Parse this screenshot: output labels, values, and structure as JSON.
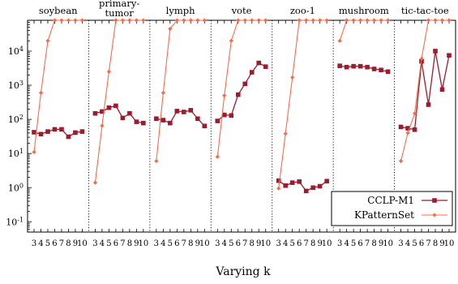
{
  "chart_data": {
    "type": "line",
    "xlabel": "Varying k",
    "ylabel": "",
    "yscale": "log",
    "ylim": [
      0.05,
      80000
    ],
    "y_ticks": [
      {
        "value": 0.1,
        "base": "10",
        "exp": "-1"
      },
      {
        "value": 1,
        "base": "10",
        "exp": "0"
      },
      {
        "value": 10,
        "base": "10",
        "exp": "1"
      },
      {
        "value": 100,
        "base": "10",
        "exp": "2"
      },
      {
        "value": 1000,
        "base": "10",
        "exp": "3"
      },
      {
        "value": 10000,
        "base": "10",
        "exp": "4"
      }
    ],
    "legend_position": "bottom-right",
    "colors": {
      "CCLP-M1": "#9b1c2e",
      "KPatternSet": "#f26d4f"
    },
    "series_names": [
      "CCLP-M1",
      "KPatternSet"
    ],
    "panels": [
      {
        "title": [
          "soybean"
        ],
        "x": [
          3,
          4,
          5,
          6,
          7,
          8,
          9,
          10
        ],
        "x_tick_labels": [
          "3",
          "4",
          "5",
          "6",
          "7",
          "8",
          "9",
          "10"
        ],
        "series": [
          {
            "name": "CCLP-M1",
            "values": [
              42,
              37,
              44,
              51,
              51,
              31,
              41,
              44
            ]
          },
          {
            "name": "KPatternSet",
            "values": [
              11,
              600,
              20000,
              80000,
              80000,
              80000,
              80000,
              80000
            ]
          }
        ]
      },
      {
        "title": [
          "primary-",
          "tumor"
        ],
        "x": [
          3,
          4,
          5,
          6,
          7,
          8,
          9,
          10
        ],
        "x_tick_labels": [
          "3",
          "4",
          "5",
          "6",
          "7",
          "8",
          "9",
          "10"
        ],
        "series": [
          {
            "name": "CCLP-M1",
            "values": [
              150,
              170,
              220,
              250,
              110,
              150,
              85,
              78
            ]
          },
          {
            "name": "KPatternSet",
            "values": [
              1.4,
              65,
              2500,
              80000,
              80000,
              80000,
              80000,
              80000
            ]
          }
        ]
      },
      {
        "title": [
          "lymph"
        ],
        "x": [
          3,
          4,
          5,
          6,
          7,
          8,
          9,
          10
        ],
        "x_tick_labels": [
          "3",
          "4",
          "5",
          "6",
          "7",
          "8",
          "9",
          "10"
        ],
        "series": [
          {
            "name": "CCLP-M1",
            "values": [
              105,
              95,
              78,
              175,
              165,
              185,
              105,
              64
            ]
          },
          {
            "name": "KPatternSet",
            "values": [
              6,
              600,
              45000,
              80000,
              80000,
              80000,
              80000,
              80000
            ]
          }
        ]
      },
      {
        "title": [
          "vote"
        ],
        "x": [
          3,
          4,
          5,
          6,
          7,
          8,
          9,
          10
        ],
        "x_tick_labels": [
          "3",
          "4",
          "5",
          "6",
          "7",
          "8",
          "9",
          "10"
        ],
        "series": [
          {
            "name": "CCLP-M1",
            "values": [
              90,
              135,
              130,
              530,
              1100,
              2400,
              4500,
              3500
            ]
          },
          {
            "name": "KPatternSet",
            "values": [
              8,
              500,
              20000,
              80000,
              80000,
              80000,
              80000,
              80000
            ]
          }
        ]
      },
      {
        "title": [
          "zoo-1"
        ],
        "x": [
          3,
          4,
          5,
          6,
          7,
          8,
          9,
          10
        ],
        "x_tick_labels": [
          "3",
          "4",
          "5",
          "6",
          "7",
          "8",
          "9",
          "10"
        ],
        "series": [
          {
            "name": "CCLP-M1",
            "values": [
              1.6,
              1.15,
              1.4,
              1.5,
              0.8,
              1.0,
              1.1,
              1.55
            ]
          },
          {
            "name": "KPatternSet",
            "values": [
              0.95,
              38,
              1700,
              80000,
              80000,
              80000,
              80000,
              80000
            ]
          }
        ]
      },
      {
        "title": [
          "mushroom"
        ],
        "x": [
          3,
          4,
          5,
          6,
          7,
          8,
          9,
          10
        ],
        "x_tick_labels": [
          "3",
          "4",
          "5",
          "6",
          "7",
          "8",
          "9",
          "10"
        ],
        "series": [
          {
            "name": "CCLP-M1",
            "values": [
              3700,
              3400,
              3600,
              3600,
              3400,
              3000,
              2800,
              2500
            ]
          },
          {
            "name": "KPatternSet",
            "values": [
              20000,
              80000,
              80000,
              80000,
              80000,
              80000,
              80000,
              80000
            ]
          }
        ]
      },
      {
        "title": [
          "tic-tac-toe"
        ],
        "x": [
          3,
          4,
          5,
          6,
          7,
          8,
          9,
          10
        ],
        "x_tick_labels": [
          "3",
          "4",
          "5",
          "6",
          "7",
          "8",
          "9",
          "10"
        ],
        "series": [
          {
            "name": "CCLP-M1",
            "values": [
              60,
              55,
              50,
              5000,
              270,
              10000,
              750,
              7500
            ]
          },
          {
            "name": "KPatternSet",
            "values": [
              6,
              40,
              150,
              6000,
              80000,
              80000,
              80000,
              80000
            ]
          }
        ]
      }
    ]
  }
}
